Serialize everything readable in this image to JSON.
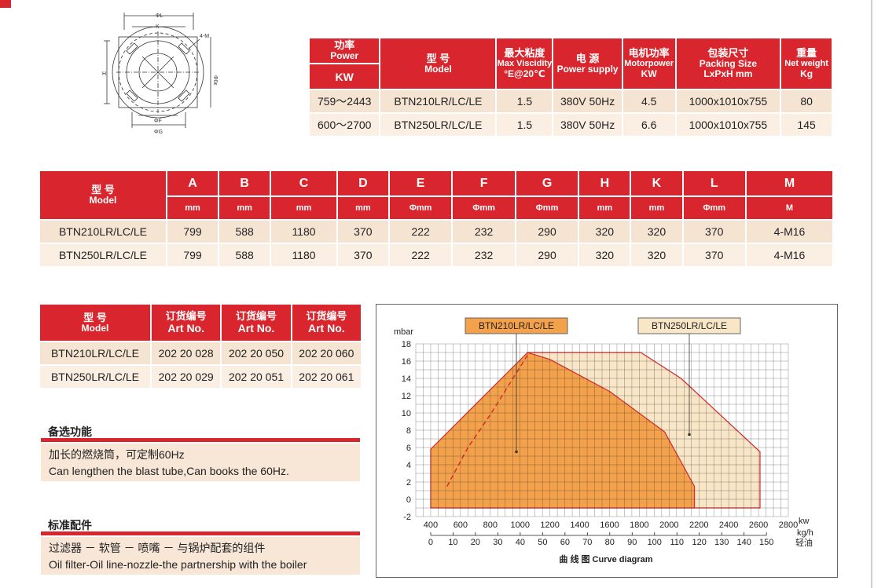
{
  "table1": {
    "headers": [
      {
        "zh": "功率",
        "en": "Power",
        "unit": "KW"
      },
      {
        "zh": "型 号",
        "en": "Model"
      },
      {
        "zh": "最大粘度",
        "en": "Max Viscidity",
        "unit": "°E@20℃"
      },
      {
        "zh": "电 源",
        "en": "Power supply"
      },
      {
        "zh": "电机功率",
        "en": "Motorpower",
        "unit": "KW"
      },
      {
        "zh": "包装尺寸",
        "en": "Packing Size",
        "unit": "LxPxH mm"
      },
      {
        "zh": "重量",
        "en": "Net weight",
        "unit": "Kg"
      }
    ],
    "rows": [
      [
        "759～2443",
        "BTN210LR/LC/LE",
        "1.5",
        "380V 50Hz",
        "4.5",
        "1000x1010x755",
        "80"
      ],
      [
        "600～2700",
        "BTN250LR/LC/LE",
        "1.5",
        "380V 50Hz",
        "6.6",
        "1000x1010x755",
        "145"
      ]
    ]
  },
  "table2": {
    "model_header": {
      "zh": "型 号",
      "en": "Model"
    },
    "columns": [
      "A",
      "B",
      "C",
      "D",
      "E",
      "F",
      "G",
      "H",
      "K",
      "L",
      "M"
    ],
    "units": [
      "mm",
      "mm",
      "mm",
      "mm",
      "Φmm",
      "Φmm",
      "Φmm",
      "mm",
      "mm",
      "Φmm",
      "M"
    ],
    "rows": [
      {
        "model": "BTN210LR/LC/LE",
        "values": [
          "799",
          "588",
          "1180",
          "370",
          "222",
          "232",
          "290",
          "320",
          "320",
          "370",
          "4-M16"
        ]
      },
      {
        "model": "BTN250LR/LC/LE",
        "values": [
          "799",
          "588",
          "1180",
          "370",
          "222",
          "232",
          "290",
          "320",
          "320",
          "370",
          "4-M16"
        ]
      }
    ]
  },
  "table3": {
    "headers": [
      {
        "zh": "型 号",
        "en": "Model"
      },
      {
        "zh": "订货编号",
        "en": "Art No."
      },
      {
        "zh": "订货编号",
        "en": "Art No."
      },
      {
        "zh": "订货编号",
        "en": "Art No."
      }
    ],
    "rows": [
      [
        "BTN210LR/LC/LE",
        "202 20 028",
        "202 20 050",
        "202 20 060"
      ],
      [
        "BTN250LR/LC/LE",
        "202 20 029",
        "202 20 051",
        "202 20 061"
      ]
    ]
  },
  "optional": {
    "title": "备选功能",
    "line_zh": "加长的燃烧筒，可定制60Hz",
    "line_en": "Can lengthen the blast tube,Can books the 60Hz."
  },
  "standard": {
    "title": "标准配件",
    "line_zh": "过滤器 － 软管 － 喷嘴 － 与锅炉配套的组件",
    "line_en": "Oil filter-Oil line-nozzle-the partnership with the boiler"
  },
  "drawing": {
    "labels": {
      "L": "ΦL",
      "K": "K",
      "M": "4-M",
      "H": "H",
      "D": "Φ0ε",
      "F": "ΦF",
      "G": "ΦG"
    }
  },
  "chart_data": {
    "type": "area",
    "title": "",
    "caption_zh": "曲 线 图",
    "caption_en": "Curve diagram",
    "ylabel": "mbar",
    "x_kw_label": "kw",
    "x_kgh_label": "kg/h",
    "x_kgh_label_zh": "轻油",
    "ylim": [
      -2,
      18
    ],
    "y_ticks": [
      -2,
      0,
      2,
      4,
      6,
      8,
      10,
      12,
      14,
      16,
      18
    ],
    "x_kw_ticks": [
      400,
      600,
      800,
      1000,
      1200,
      1400,
      1600,
      1800,
      2000,
      2200,
      2400,
      2600,
      2800
    ],
    "x_kgh_ticks": [
      0,
      10,
      20,
      30,
      40,
      50,
      60,
      70,
      80,
      90,
      100,
      110,
      120,
      130,
      140,
      150
    ],
    "grid": true,
    "series": [
      {
        "name": "BTN210LR/LC/LE",
        "color": "#f3a24b",
        "points": [
          [
            400,
            -1
          ],
          [
            400,
            5.8
          ],
          [
            1050,
            17
          ],
          [
            1200,
            16.2
          ],
          [
            1600,
            12.5
          ],
          [
            1970,
            7.8
          ],
          [
            2170,
            1.5
          ],
          [
            2170,
            -1
          ]
        ],
        "dashed_points": [
          [
            510,
            1.5
          ],
          [
            650,
            6
          ],
          [
            800,
            9.8
          ],
          [
            1050,
            16.7
          ]
        ]
      },
      {
        "name": "BTN250LR/LC/LE",
        "color": "#f8e6c6",
        "points": [
          [
            500,
            -1
          ],
          [
            500,
            1.5
          ],
          [
            1050,
            17
          ],
          [
            1810,
            17
          ],
          [
            2080,
            14
          ],
          [
            2610,
            5.5
          ],
          [
            2610,
            -1
          ]
        ]
      }
    ]
  },
  "colors": {
    "accent": "#d9262e",
    "cell": "#f6e4d3"
  }
}
